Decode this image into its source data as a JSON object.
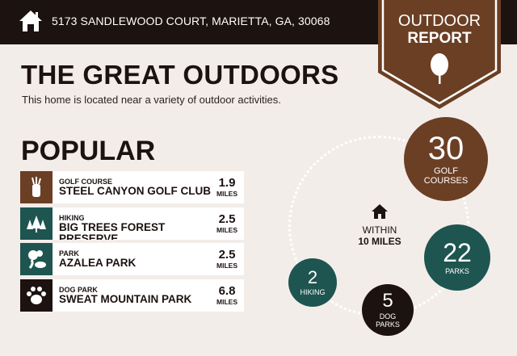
{
  "header": {
    "address": "5173 SANDLEWOOD COURT, MARIETTA, GA, 30068",
    "badge_line1": "OUTDOOR",
    "badge_line2": "REPORT"
  },
  "title": "THE GREAT OUTDOORS",
  "subtitle": "This home is located near a variety of outdoor activities.",
  "popular": {
    "heading": "POPULAR",
    "items": [
      {
        "category": "GOLF COURSE",
        "name": "STEEL CANYON GOLF CLUB",
        "distance": "1.9",
        "unit": "MILES",
        "icon": "golf-bag-icon",
        "color": "#6b3f24"
      },
      {
        "category": "HIKING",
        "name": "BIG TREES FOREST PRESERVE",
        "distance": "2.5",
        "unit": "MILES",
        "icon": "trees-icon",
        "color": "#1e5550"
      },
      {
        "category": "PARK",
        "name": "AZALEA PARK",
        "distance": "2.5",
        "unit": "MILES",
        "icon": "park-icon",
        "color": "#1e5550"
      },
      {
        "category": "DOG PARK",
        "name": "SWEAT MOUNTAIN PARK",
        "distance": "6.8",
        "unit": "MILES",
        "icon": "paw-icon",
        "color": "#1c1210"
      }
    ]
  },
  "nearby": {
    "within_line1": "WITHIN",
    "within_line2": "10 MILES",
    "counts": [
      {
        "value": "30",
        "label1": "GOLF",
        "label2": "COURSES",
        "color": "#6b3f24"
      },
      {
        "value": "22",
        "label1": "PARKS",
        "label2": "",
        "color": "#1e5550"
      },
      {
        "value": "2",
        "label1": "HIKING",
        "label2": "",
        "color": "#1e5550"
      },
      {
        "value": "5",
        "label1": "DOG",
        "label2": "PARKS",
        "color": "#1c1210"
      }
    ]
  }
}
